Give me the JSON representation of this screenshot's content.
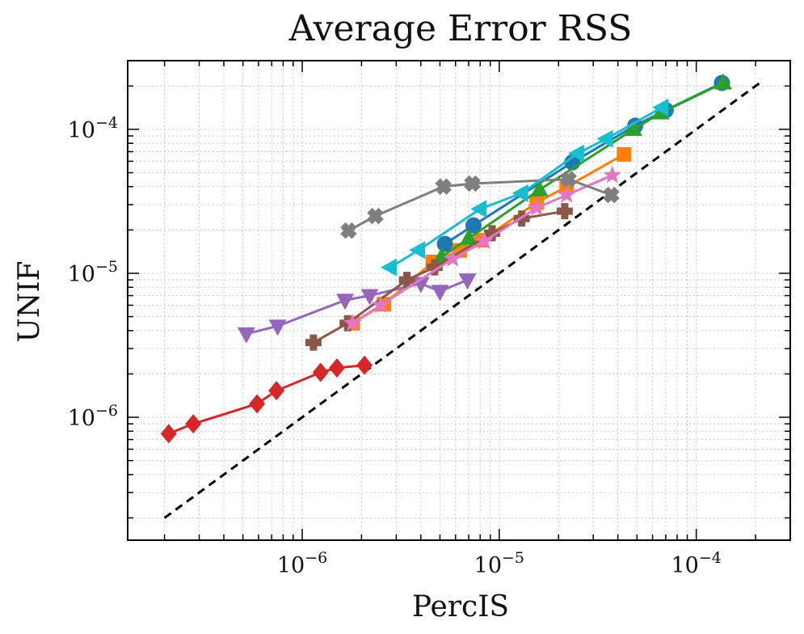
{
  "chart_data": {
    "type": "line",
    "title": "Average Error RSS",
    "xlabel": "PercIS",
    "ylabel": "UNIF",
    "xscale": "log",
    "yscale": "log",
    "xlim": [
      1.3e-07,
      0.0003
    ],
    "ylim": [
      1.4e-07,
      0.0003
    ],
    "grid": true,
    "legend": "none",
    "x_ticks": [
      {
        "value": 1e-06,
        "base": "10",
        "exp": "−6"
      },
      {
        "value": 1e-05,
        "base": "10",
        "exp": "−5"
      },
      {
        "value": 0.0001,
        "base": "10",
        "exp": "−4"
      }
    ],
    "y_ticks": [
      {
        "value": 1e-06,
        "base": "10",
        "exp": "−6"
      },
      {
        "value": 1e-05,
        "base": "10",
        "exp": "−5"
      },
      {
        "value": 0.0001,
        "base": "10",
        "exp": "−4"
      }
    ],
    "reference_line": {
      "style": "dashed",
      "color": "#000000",
      "x": [
        2e-07,
        0.00021
      ],
      "y": [
        2e-07,
        0.00021
      ]
    },
    "series": [
      {
        "color": "#1f77b4",
        "marker": "circle",
        "x": [
          5.3e-06,
          7.4e-06,
          2.35e-05,
          4.9e-05,
          7e-05,
          0.000135
        ],
        "y": [
          1.6e-05,
          2.15e-05,
          5.9e-05,
          0.000106,
          0.000136,
          0.00021
        ]
      },
      {
        "color": "#ff7f0e",
        "marker": "square",
        "x": [
          1.8e-06,
          2.6e-06,
          4.6e-06,
          6.3e-06,
          8.1e-06,
          1.55e-05,
          2.2e-05,
          4.3e-05
        ],
        "y": [
          4.5e-06,
          6.1e-06,
          1.2e-05,
          1.44e-05,
          1.7e-05,
          3.1e-05,
          4e-05,
          6.7e-05
        ]
      },
      {
        "color": "#2ca02c",
        "marker": "triangle-up",
        "x": [
          5.1e-06,
          7e-06,
          1.6e-05,
          4.8e-05,
          6.6e-05,
          0.000137
        ],
        "y": [
          1.3e-05,
          1.75e-05,
          3.8e-05,
          0.0001,
          0.00013,
          0.00021
        ]
      },
      {
        "color": "#d62728",
        "marker": "diamond",
        "x": [
          2.1e-07,
          2.8e-07,
          5.9e-07,
          7.4e-07,
          1.24e-06,
          1.5e-06,
          2.07e-06
        ],
        "y": [
          7.7e-07,
          9e-07,
          1.24e-06,
          1.53e-06,
          2.05e-06,
          2.2e-06,
          2.3e-06
        ]
      },
      {
        "color": "#9467bd",
        "marker": "triangle-down",
        "x": [
          5.2e-07,
          7.5e-07,
          1.65e-06,
          2.2e-06,
          4e-06,
          5e-06,
          6.9e-06
        ],
        "y": [
          3.8e-06,
          4.3e-06,
          6.5e-06,
          7e-06,
          8.5e-06,
          7.5e-06,
          9e-06
        ]
      },
      {
        "color": "#8c564b",
        "marker": "plus",
        "x": [
          1.14e-06,
          1.7e-06,
          3.4e-06,
          4.7e-06,
          9.2e-06,
          1.3e-05,
          2.15e-05
        ],
        "y": [
          3.3e-06,
          4.5e-06,
          9e-06,
          1.1e-05,
          1.9e-05,
          2.4e-05,
          2.7e-05
        ]
      },
      {
        "color": "#e377c2",
        "marker": "star",
        "x": [
          1.8e-06,
          2.5e-06,
          5.8e-06,
          8.4e-06,
          1.55e-05,
          2.2e-05,
          3.75e-05
        ],
        "y": [
          4.5e-06,
          6e-06,
          1.26e-05,
          1.67e-05,
          2.85e-05,
          3.5e-05,
          4.8e-05
        ]
      },
      {
        "color": "#7f7f7f",
        "marker": "x",
        "x": [
          1.72e-06,
          2.35e-06,
          5.2e-06,
          7.3e-06,
          2.25e-05,
          3.7e-05
        ],
        "y": [
          1.98e-05,
          2.5e-05,
          4e-05,
          4.2e-05,
          4.5e-05,
          3.5e-05
        ]
      },
      {
        "color": "#17becf",
        "marker": "triangle-left",
        "x": [
          2.8e-06,
          3.9e-06,
          8e-06,
          1.3e-05,
          2.5e-05,
          3.5e-05,
          6.7e-05
        ],
        "y": [
          1.1e-05,
          1.45e-05,
          2.8e-05,
          3.6e-05,
          6.8e-05,
          8.6e-05,
          0.000142
        ]
      }
    ]
  }
}
